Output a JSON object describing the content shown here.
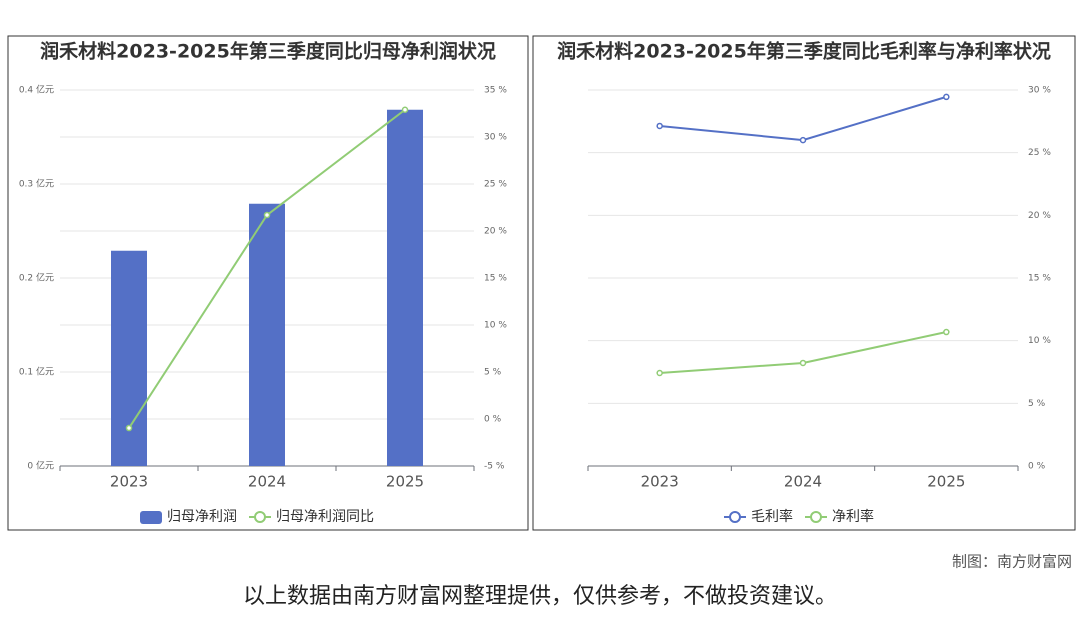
{
  "chart_data": [
    {
      "type": "bar",
      "title": "润禾材料2023-2025年第三季度同比归母净利润状况",
      "categories": [
        "2023",
        "2024",
        "2025"
      ],
      "series": [
        {
          "name": "归母净利润",
          "color": "#5470c6",
          "values": [
            0.229,
            0.279,
            0.379
          ]
        },
        {
          "name": "归母净利润同比",
          "color": "#91cc75",
          "axis": "y2",
          "type": "line",
          "values": [
            -0.96,
            21.7,
            32.9
          ]
        }
      ],
      "ylim": [
        0,
        0.4
      ],
      "yticks": [
        {
          "value": 0,
          "label": "0 亿元"
        },
        {
          "value": 0.1,
          "label": "0.1 亿元"
        },
        {
          "value": 0.2,
          "label": "0.2 亿元"
        },
        {
          "value": 0.3,
          "label": "0.3 亿元"
        },
        {
          "value": 0.4,
          "label": "0.4 亿元"
        }
      ],
      "y2lim": [
        -5,
        35
      ],
      "y2ticks": [
        {
          "value": -5,
          "label": "-5 %"
        },
        {
          "value": 0,
          "label": "0 %"
        },
        {
          "value": 5,
          "label": "5 %"
        },
        {
          "value": 10,
          "label": "10 %"
        },
        {
          "value": 15,
          "label": "15 %"
        },
        {
          "value": 20,
          "label": "20 %"
        },
        {
          "value": 25,
          "label": "25 %"
        },
        {
          "value": 30,
          "label": "30 %"
        },
        {
          "value": 35,
          "label": "35 %"
        }
      ],
      "grid": true
    },
    {
      "type": "line",
      "title": "润禾材料2023-2025年第三季度同比毛利率与净利率状况",
      "categories": [
        "2023",
        "2024",
        "2025"
      ],
      "series": [
        {
          "name": "毛利率",
          "color": "#5470c6",
          "axis": "y2",
          "values": [
            27.13,
            26.0,
            29.45
          ]
        },
        {
          "name": "净利率",
          "color": "#91cc75",
          "axis": "y2",
          "values": [
            7.42,
            8.22,
            10.69
          ]
        }
      ],
      "y2lim": [
        0,
        30
      ],
      "y2ticks": [
        {
          "value": 0,
          "label": "0 %"
        },
        {
          "value": 5,
          "label": "5 %"
        },
        {
          "value": 10,
          "label": "10 %"
        },
        {
          "value": 15,
          "label": "15 %"
        },
        {
          "value": 20,
          "label": "20 %"
        },
        {
          "value": 25,
          "label": "25 %"
        },
        {
          "value": 30,
          "label": "30 %"
        }
      ],
      "grid": true
    }
  ],
  "source": "制图：南方财富网",
  "disclaimer": "以上数据由南方财富网整理提供，仅供参考，不做投资建议。"
}
